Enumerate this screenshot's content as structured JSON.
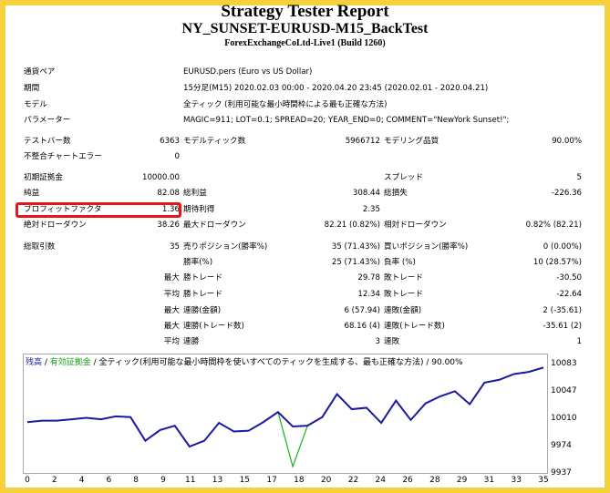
{
  "header": {
    "title": "Strategy Tester Report",
    "subtitle": "NY_SUNSET-EURUSD-M15_BackTest",
    "broker": "ForexExchangeCoLtd-Live1 (Build 1260)"
  },
  "info": {
    "symbol_label": "通貨ペア",
    "symbol_value": "EURUSD.pers (Euro vs US Dollar)",
    "period_label": "期間",
    "period_value": "15分足(M15) 2020.02.03 00:00 - 2020.04.20 23:45 (2020.02.01 - 2020.04.21)",
    "model_label": "モデル",
    "model_value": "全ティック (利用可能な最小時間枠による最も正確な方法)",
    "params_label": "パラメーター",
    "params_value": "MAGIC=911; LOT=0.1; SPREAD=20; YEAR_END=0; COMMENT=\"NewYork Sunset!\";"
  },
  "stats": {
    "bars_label": "テストバー数",
    "bars_value": "6363",
    "ticks_label": "モデルティック数",
    "ticks_value": "5966712",
    "quality_label": "モデリング品質",
    "quality_value": "90.00%",
    "mismatch_label": "不整合チャートエラー",
    "mismatch_value": "0",
    "deposit_label": "初期証拠金",
    "deposit_value": "10000.00",
    "spread_label": "スプレッド",
    "spread_value": "5",
    "net_label": "純益",
    "net_value": "82.08",
    "gross_profit_label": "総利益",
    "gross_profit_value": "308.44",
    "gross_loss_label": "総損失",
    "gross_loss_value": "-226.36",
    "pf_label": "プロフィットファクタ",
    "pf_value": "1.36",
    "expected_label": "期待利得",
    "expected_value": "2.35",
    "abs_dd_label": "絶対ドローダウン",
    "abs_dd_value": "38.26",
    "max_dd_label": "最大ドローダウン",
    "max_dd_value": "82.21 (0.82%)",
    "rel_dd_label": "相対ドローダウン",
    "rel_dd_value": "0.82% (82.21)",
    "trades_label": "総取引数",
    "trades_value": "35",
    "short_label": "売りポジション(勝率%)",
    "short_value": "35 (71.43%)",
    "long_label": "買いポジション(勝率%)",
    "long_value": "0 (0.00%)",
    "win_pct_label": "勝率(%)",
    "win_pct_value": "25 (71.43%)",
    "loss_pct_label": "負率 (%)",
    "loss_pct_value": "10 (28.57%)",
    "max_word": "最大",
    "avg_word": "平均",
    "largest_win_label": "勝トレード",
    "largest_win_value": "29.78",
    "largest_loss_label": "敗トレード",
    "largest_loss_value": "-30.50",
    "avg_win_label": "勝トレード",
    "avg_win_value": "12.34",
    "avg_loss_label": "敗トレード",
    "avg_loss_value": "-22.64",
    "cons_win_label": "連勝(金額)",
    "cons_win_value": "6 (57.94)",
    "cons_loss_label": "連敗(金額)",
    "cons_loss_value": "2 (-35.61)",
    "cons_profit_label": "連勝(トレード数)",
    "cons_profit_value": "68.16 (4)",
    "cons_lossamt_label": "連敗(トレード数)",
    "cons_lossamt_value": "-35.61 (2)",
    "avg_cons_win_label": "連勝",
    "avg_cons_win_value": "3",
    "avg_cons_loss_label": "連敗",
    "avg_cons_loss_value": "1"
  },
  "chart_legend": {
    "balance": "残高",
    "sep1": " / ",
    "equity": "有効証拠金",
    "rest": " / 全ティック(利用可能な最小時間枠を使いすべてのティックを生成する、最も正確な方法) / 90.00%"
  },
  "colors": {
    "balance": "#1a1a9c",
    "equity": "#18b418",
    "frame": "#f5d23d",
    "highlight": "#e4161b"
  },
  "chart_data": {
    "type": "line",
    "x": [
      0,
      1,
      2,
      3,
      4,
      5,
      6,
      7,
      8,
      9,
      10,
      11,
      12,
      13,
      14,
      15,
      16,
      17,
      18,
      19,
      20,
      21,
      22,
      23,
      24,
      25,
      26,
      27,
      28,
      29,
      30,
      31,
      32,
      33,
      34,
      35
    ],
    "series": [
      {
        "name": "残高",
        "values": [
          10004,
          10006,
          10006,
          10008,
          10010,
          10008,
          10012,
          10011,
          9978,
          9993,
          9999,
          9970,
          9978,
          10003,
          9991,
          9992,
          10004,
          10018,
          9998,
          9999,
          10011,
          10043,
          10022,
          10024,
          10003,
          10034,
          10007,
          10030,
          10040,
          10047,
          10029,
          10059,
          10063,
          10071,
          10074,
          10080
        ]
      },
      {
        "name": "有効証拠金",
        "values": [
          10004,
          10006,
          10006,
          10008,
          10010,
          10008,
          10012,
          10011,
          9978,
          9993,
          9999,
          9970,
          9978,
          10003,
          9991,
          9992,
          10004,
          10018,
          9942,
          9999,
          10011,
          10043,
          10022,
          10024,
          10003,
          10034,
          10007,
          10030,
          10040,
          10047,
          10029,
          10059,
          10063,
          10071,
          10074,
          10080
        ]
      }
    ],
    "yticks": [
      "10083",
      "10047",
      "10010",
      "9974",
      "9937"
    ],
    "xticks": [
      "0",
      "2",
      "4",
      "6",
      "8",
      "9",
      "11",
      "13",
      "15",
      "17",
      "18",
      "20",
      "22",
      "24",
      "26",
      "28",
      "29",
      "31",
      "33",
      "35"
    ],
    "ylim": [
      9937,
      10083
    ],
    "xlim": [
      0,
      35
    ]
  }
}
